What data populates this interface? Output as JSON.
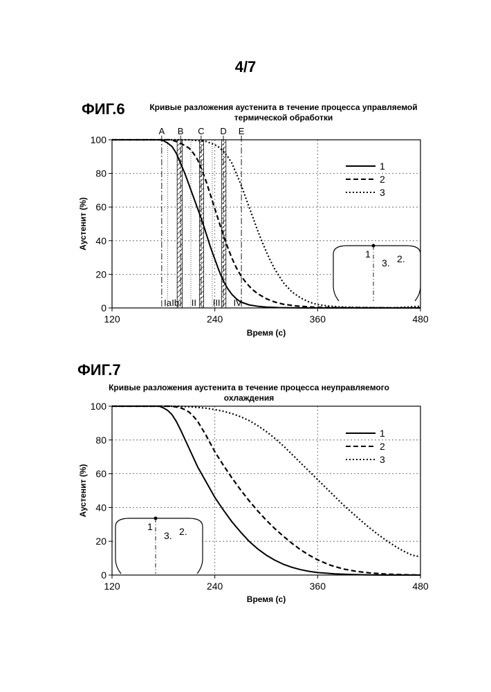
{
  "page_number": "4/7",
  "figures": [
    {
      "label": "ФИГ.6",
      "title_line1": "Кривые разложения аустенита в течение процесса управляемой",
      "title_line2": "термической обработки"
    },
    {
      "label": "ФИГ.7",
      "title_line1": "Кривые разложения аустенита в течение процесса неуправляемого",
      "title_line2": "охлаждения"
    }
  ],
  "chart_data": [
    {
      "type": "line",
      "title": "Кривые разложения аустенита в течение процесса управляемой термической обработки",
      "xlabel": "Время (с)",
      "ylabel": "Аустенит (%)",
      "xlim": [
        120,
        480
      ],
      "ylim": [
        0,
        100
      ],
      "x_ticks": [
        120,
        240,
        360,
        480
      ],
      "y_ticks": [
        0,
        20,
        40,
        60,
        80,
        100
      ],
      "grid": true,
      "legend_position": "top-right",
      "series": [
        {
          "name": "1",
          "style": "solid",
          "color": "#000000",
          "x": [
            120,
            175,
            180,
            185,
            190,
            195,
            200,
            205,
            210,
            215,
            220,
            225,
            230,
            235,
            240,
            245,
            250,
            255,
            260,
            265,
            270,
            280,
            290,
            300,
            315,
            330,
            350,
            480
          ],
          "y": [
            100,
            100,
            99.5,
            98,
            96,
            92,
            86,
            80,
            73,
            66,
            59,
            52,
            44,
            36,
            29,
            22,
            16,
            11.5,
            8,
            5.5,
            3.6,
            1.8,
            1,
            0.5,
            0.2,
            0.1,
            0,
            0
          ]
        },
        {
          "name": "2",
          "style": "dashed",
          "color": "#000000",
          "x": [
            120,
            188,
            195,
            200,
            205,
            210,
            215,
            220,
            225,
            230,
            235,
            240,
            245,
            250,
            255,
            260,
            265,
            270,
            275,
            280,
            285,
            290,
            300,
            310,
            320,
            335,
            355,
            380,
            480
          ],
          "y": [
            100,
            100,
            99,
            98,
            96.5,
            95,
            92,
            88,
            82,
            75,
            67,
            59,
            51,
            43,
            36,
            29.5,
            24,
            19.5,
            16,
            13,
            10.5,
            8.5,
            5.5,
            3.5,
            2.2,
            1.2,
            0.5,
            0.2,
            0
          ]
        },
        {
          "name": "3",
          "style": "dotted",
          "color": "#000000",
          "x": [
            120,
            210,
            220,
            230,
            235,
            240,
            245,
            250,
            255,
            260,
            265,
            270,
            275,
            280,
            285,
            290,
            295,
            300,
            305,
            310,
            320,
            330,
            340,
            350,
            360,
            375,
            390,
            420,
            450,
            480
          ],
          "y": [
            100,
            100,
            99.5,
            99,
            98,
            97,
            95.5,
            93,
            90,
            86,
            80,
            74,
            67,
            60,
            53,
            46,
            39.5,
            33.5,
            28,
            23,
            15,
            9.5,
            6,
            3.5,
            2,
            1,
            0.5,
            0.2,
            0.1,
            1
          ]
        }
      ],
      "zone_lines": [
        {
          "label": "A",
          "x": 178,
          "style": "dash-dot"
        },
        {
          "label": "B",
          "x": 200,
          "style": "dash-dot"
        },
        {
          "label": "C",
          "x": 224,
          "style": "dash-dot"
        },
        {
          "label": "D",
          "x": 250,
          "style": "dash-dot"
        },
        {
          "label": "E",
          "x": 271,
          "style": "dash-dot"
        }
      ],
      "zone_divider_x": [
        185,
        212,
        237
      ],
      "hatched_bands": [
        [
          196,
          202
        ],
        [
          222,
          227
        ],
        [
          248,
          253
        ]
      ],
      "zone_labels": [
        {
          "text": "Ia",
          "x": 179
        },
        {
          "text": "Ib",
          "x": 188
        },
        {
          "text": "II",
          "x": 211
        },
        {
          "text": "III",
          "x": 236
        },
        {
          "text": "IV",
          "x": 260
        }
      ],
      "inset": {
        "point_labels": [
          "1",
          "3.",
          "2."
        ]
      }
    },
    {
      "type": "line",
      "title": "Кривые разложения аустенита в течение процесса неуправляемого охлаждения",
      "xlabel": "Время (с)",
      "ylabel": "Аустенит (%)",
      "xlim": [
        120,
        480
      ],
      "ylim": [
        0,
        100
      ],
      "x_ticks": [
        120,
        240,
        360,
        480
      ],
      "y_ticks": [
        0,
        20,
        40,
        60,
        80,
        100
      ],
      "grid": true,
      "legend_position": "top-right",
      "series": [
        {
          "name": "1",
          "style": "solid",
          "color": "#000000",
          "x": [
            120,
            175,
            180,
            185,
            190,
            195,
            200,
            210,
            220,
            230,
            240,
            250,
            260,
            270,
            280,
            290,
            300,
            310,
            320,
            330,
            340,
            350,
            360,
            380,
            400,
            420,
            440,
            480
          ],
          "y": [
            100,
            100,
            99,
            97.5,
            95,
            91,
            86,
            75,
            64,
            55,
            46,
            38.5,
            31.5,
            25.5,
            20,
            15.5,
            11.8,
            8.8,
            6.4,
            4.6,
            3.2,
            2.2,
            1.5,
            0.7,
            0.3,
            0.1,
            0,
            0
          ]
        },
        {
          "name": "2",
          "style": "dashed",
          "color": "#000000",
          "x": [
            120,
            190,
            200,
            205,
            210,
            215,
            220,
            230,
            240,
            250,
            260,
            270,
            280,
            290,
            300,
            310,
            320,
            330,
            340,
            350,
            360,
            375,
            390,
            405,
            420,
            440,
            460,
            480
          ],
          "y": [
            100,
            100,
            99,
            98,
            96.5,
            94,
            91,
            82.5,
            73,
            65,
            57.5,
            50.5,
            44,
            38,
            32.5,
            27.5,
            23,
            18.8,
            15,
            11.8,
            9,
            5.8,
            3.6,
            2.2,
            1.3,
            0.6,
            0.2,
            0
          ]
        },
        {
          "name": "3",
          "style": "dotted",
          "color": "#000000",
          "x": [
            120,
            190,
            200,
            210,
            220,
            230,
            240,
            250,
            260,
            270,
            280,
            290,
            300,
            310,
            320,
            330,
            340,
            350,
            360,
            370,
            380,
            390,
            400,
            410,
            420,
            430,
            440,
            450,
            460,
            470,
            480
          ],
          "y": [
            100,
            100,
            99.9,
            99.7,
            99.3,
            98.8,
            98,
            97,
            95.6,
            93.8,
            91.5,
            88.5,
            85,
            81,
            76.5,
            71.5,
            66.5,
            61.5,
            56.5,
            51.5,
            46.5,
            41.5,
            37,
            32.5,
            28.2,
            24.2,
            20.5,
            17.2,
            14.2,
            11.8,
            10.8
          ]
        }
      ],
      "inset": {
        "point_labels": [
          "1",
          "3.",
          "2."
        ]
      }
    }
  ]
}
